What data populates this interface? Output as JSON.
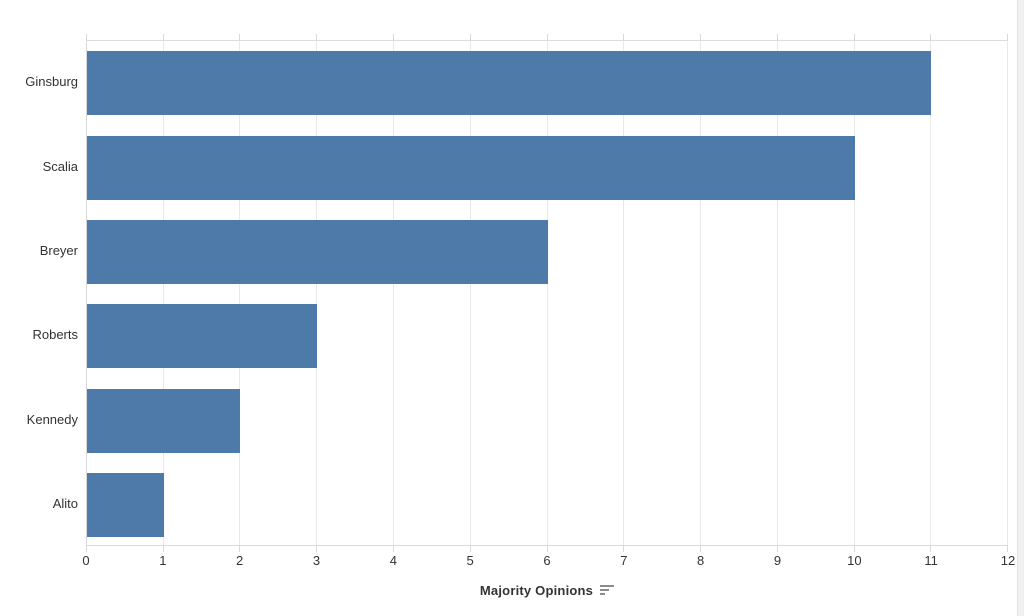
{
  "chart_data": {
    "type": "bar",
    "orientation": "horizontal",
    "title": "",
    "xlabel": "Majority Opinions",
    "ylabel": "",
    "categories": [
      "Ginsburg",
      "Scalia",
      "Breyer",
      "Roberts",
      "Kennedy",
      "Alito"
    ],
    "values": [
      11,
      10,
      6,
      3,
      2,
      1
    ],
    "xlim": [
      0,
      12
    ],
    "x_ticks": [
      0,
      1,
      2,
      3,
      4,
      5,
      6,
      7,
      8,
      9,
      10,
      11,
      12
    ],
    "legend": "none",
    "grid": "vertical",
    "sort_indicator": "descending",
    "colors": {
      "bar": "#4e7aa9",
      "gridline": "#e9e9e9",
      "axis_line": "#d9d9d9",
      "label": "#333333",
      "sort_icon": "#8c8c8c",
      "background": "#ffffff"
    }
  }
}
